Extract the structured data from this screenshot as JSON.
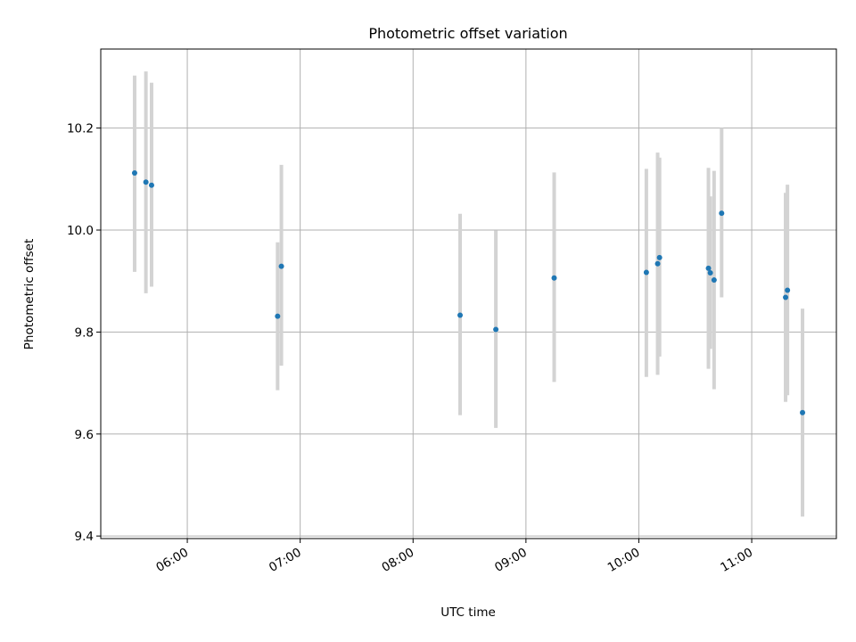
{
  "chart_data": {
    "type": "scatter",
    "title": "Photometric offset variation",
    "xlabel": "UTC time",
    "ylabel": "Photometric offset",
    "xlim": [
      "05:14",
      "11:45"
    ],
    "ylim": [
      9.395,
      10.355
    ],
    "x_ticks": [
      "06:00",
      "07:00",
      "08:00",
      "09:00",
      "10:00",
      "11:00"
    ],
    "y_ticks": [
      9.4,
      9.6,
      9.8,
      10.0,
      10.2
    ],
    "y_tick_labels": [
      "9.4",
      "9.6",
      "9.8",
      "10.0",
      "10.2"
    ],
    "grid": true,
    "series": [
      {
        "marker_color": "#1f77b4",
        "errorbar_color": "#d3d3d3",
        "points": [
          {
            "x": "05:32",
            "y": 10.112,
            "ylow": 9.918,
            "yhigh": 10.303
          },
          {
            "x": "05:38",
            "y": 10.094,
            "ylow": 9.876,
            "yhigh": 10.311
          },
          {
            "x": "05:41",
            "y": 10.088,
            "ylow": 9.889,
            "yhigh": 10.289
          },
          {
            "x": "06:48",
            "y": 9.831,
            "ylow": 9.686,
            "yhigh": 9.976
          },
          {
            "x": "06:50",
            "y": 9.929,
            "ylow": 9.734,
            "yhigh": 10.128
          },
          {
            "x": "08:25",
            "y": 9.833,
            "ylow": 9.637,
            "yhigh": 10.032
          },
          {
            "x": "08:44",
            "y": 9.805,
            "ylow": 9.612,
            "yhigh": 9.999
          },
          {
            "x": "09:15",
            "y": 9.906,
            "ylow": 9.702,
            "yhigh": 10.113
          },
          {
            "x": "10:04",
            "y": 9.917,
            "ylow": 9.712,
            "yhigh": 10.12
          },
          {
            "x": "10:10",
            "y": 9.934,
            "ylow": 9.716,
            "yhigh": 10.152
          },
          {
            "x": "10:11",
            "y": 9.946,
            "ylow": 9.752,
            "yhigh": 10.142
          },
          {
            "x": "10:37",
            "y": 9.925,
            "ylow": 9.728,
            "yhigh": 10.122
          },
          {
            "x": "10:38",
            "y": 9.916,
            "ylow": 9.767,
            "yhigh": 10.066
          },
          {
            "x": "10:40",
            "y": 9.902,
            "ylow": 9.688,
            "yhigh": 10.116
          },
          {
            "x": "10:44",
            "y": 10.033,
            "ylow": 9.868,
            "yhigh": 10.2
          },
          {
            "x": "11:18",
            "y": 9.868,
            "ylow": 9.663,
            "yhigh": 10.073
          },
          {
            "x": "11:19",
            "y": 9.882,
            "ylow": 9.676,
            "yhigh": 10.089
          },
          {
            "x": "11:27",
            "y": 9.642,
            "ylow": 9.438,
            "yhigh": 9.846
          }
        ]
      }
    ]
  }
}
